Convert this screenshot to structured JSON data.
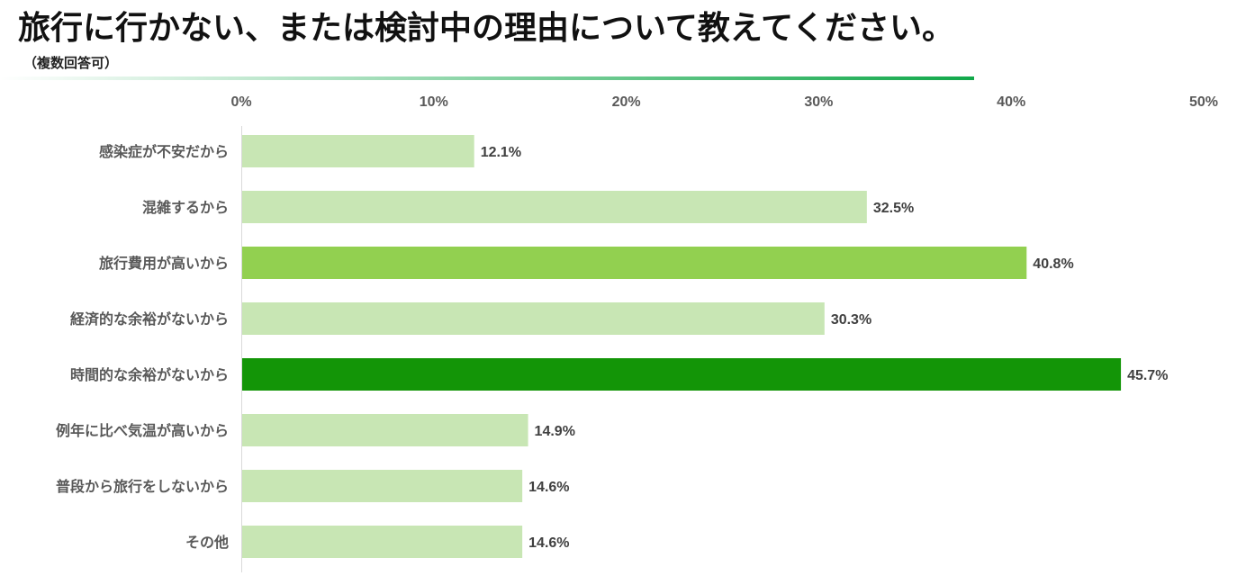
{
  "title": "旅行に行かない、または検討中の理由について教えてください。",
  "subtitle": "（複数回答可）",
  "colors": {
    "bar_default": "#c8e6b4",
    "bar_highlight": "#92d050",
    "bar_max": "#139507",
    "rule_start": "#ffffff",
    "rule_end": "#11a84a",
    "axis": "#d9d9d9"
  },
  "chart_data": {
    "type": "bar",
    "orientation": "horizontal",
    "title": "",
    "xlabel": "",
    "ylabel": "",
    "xlim": [
      0,
      50
    ],
    "x_tick_values": [
      0,
      10,
      20,
      30,
      40,
      50
    ],
    "x_tick_labels": [
      "0%",
      "10%",
      "20%",
      "30%",
      "40%",
      "50%"
    ],
    "x_axis_position": "top",
    "grid": false,
    "legend": "none",
    "categories": [
      "感染症が不安だから",
      "混雑するから",
      "旅行費用が高いから",
      "経済的な余裕がないから",
      "時間的な余裕がないから",
      "例年に比べ気温が高いから",
      "普段から旅行をしないから",
      "その他"
    ],
    "values": [
      12.1,
      32.5,
      40.8,
      30.3,
      45.7,
      14.9,
      14.6,
      14.6
    ],
    "data_labels": [
      "12.1%",
      "32.5%",
      "40.8%",
      "30.3%",
      "45.7%",
      "14.9%",
      "14.6%",
      "14.6%"
    ],
    "bar_color_roles": [
      "default",
      "default",
      "highlight",
      "default",
      "max",
      "default",
      "default",
      "default"
    ]
  }
}
